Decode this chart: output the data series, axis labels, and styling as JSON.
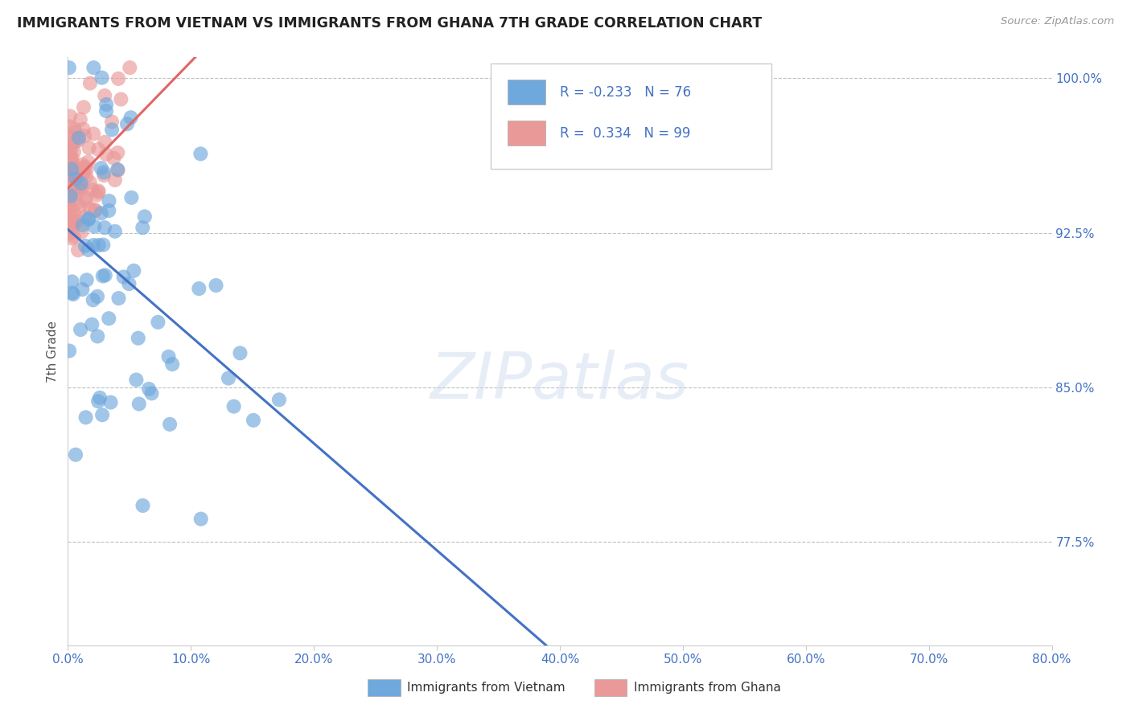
{
  "title": "IMMIGRANTS FROM VIETNAM VS IMMIGRANTS FROM GHANA 7TH GRADE CORRELATION CHART",
  "source": "Source: ZipAtlas.com",
  "ylabel": "7th Grade",
  "xlabel_legend1": "Immigrants from Vietnam",
  "xlabel_legend2": "Immigrants from Ghana",
  "xmin": 0.0,
  "xmax": 0.8,
  "ymin": 0.725,
  "ymax": 1.01,
  "yticks": [
    0.775,
    0.85,
    0.925,
    1.0
  ],
  "ytick_labels": [
    "77.5%",
    "85.0%",
    "92.5%",
    "100.0%"
  ],
  "xticks": [
    0.0,
    0.1,
    0.2,
    0.3,
    0.4,
    0.5,
    0.6,
    0.7,
    0.8
  ],
  "xtick_labels": [
    "0.0%",
    "10.0%",
    "20.0%",
    "30.0%",
    "40.0%",
    "50.0%",
    "60.0%",
    "70.0%",
    "80.0%"
  ],
  "R_vietnam": -0.233,
  "N_vietnam": 76,
  "R_ghana": 0.334,
  "N_ghana": 99,
  "color_vietnam": "#6fa8dc",
  "color_ghana": "#ea9999",
  "color_trendline_vietnam": "#4472c4",
  "color_trendline_ghana": "#e06666",
  "watermark": "ZIPatlas",
  "background_color": "#ffffff",
  "grid_color": "#c0c0c0",
  "title_color": "#222222",
  "axis_label_color": "#555555",
  "tick_label_color": "#4472c4",
  "legend_R_color": "#4472c4",
  "legend_N_color": "#4472c4"
}
